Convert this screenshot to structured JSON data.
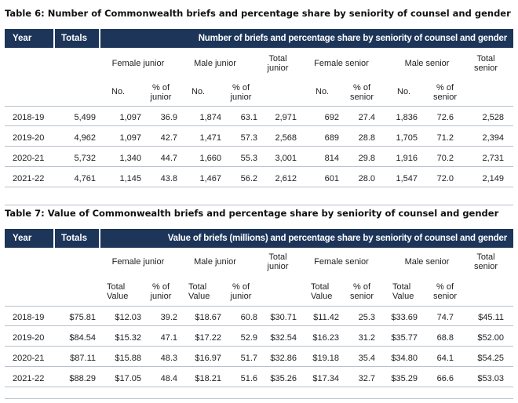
{
  "table6": {
    "caption": "Table 6: Number of Commonwealth briefs and percentage share by seniority of counsel and gender",
    "header": {
      "year": "Year",
      "totals": "Totals",
      "span": "Number of briefs and percentage share by seniority of counsel and gender"
    },
    "groups": {
      "female_junior": "Female junior",
      "male_junior": "Male junior",
      "total_junior": "Total junior",
      "female_senior": "Female senior",
      "male_senior": "Male senior",
      "total_senior": "Total senior"
    },
    "sub": {
      "fj_a": "No.",
      "fj_b": "% of junior",
      "mj_a": "No.",
      "mj_b": "% of junior",
      "fs_a": "No.",
      "fs_b": "% of senior",
      "ms_a": "No.",
      "ms_b": "% of senior"
    },
    "rows": [
      [
        "2018-19",
        "5,499",
        "1,097",
        "36.9",
        "1,874",
        "63.1",
        "2,971",
        "692",
        "27.4",
        "1,836",
        "72.6",
        "2,528"
      ],
      [
        "2019-20",
        "4,962",
        "1,097",
        "42.7",
        "1,471",
        "57.3",
        "2,568",
        "689",
        "28.8",
        "1,705",
        "71.2",
        "2,394"
      ],
      [
        "2020-21",
        "5,732",
        "1,340",
        "44.7",
        "1,660",
        "55.3",
        "3,001",
        "814",
        "29.8",
        "1,916",
        "70.2",
        "2,731"
      ],
      [
        "2021-22",
        "4,761",
        "1,145",
        "43.8",
        "1,467",
        "56.2",
        "2,612",
        "601",
        "28.0",
        "1,547",
        "72.0",
        "2,149"
      ]
    ]
  },
  "table7": {
    "caption": "Table 7: Value of Commonwealth briefs and percentage share by seniority of counsel and gender",
    "header": {
      "year": "Year",
      "totals": "Totals",
      "span": "Value of briefs (millions) and percentage share by seniority of counsel and gender"
    },
    "groups": {
      "female_junior": "Female junior",
      "male_junior": "Male junior",
      "total_junior": "Total junior",
      "female_senior": "Female senior",
      "male_senior": "Male senior",
      "total_senior": "Total senior"
    },
    "sub": {
      "fj_a": "Total Value",
      "fj_b": "% of junior",
      "mj_a": "Total Value",
      "mj_b": "% of junior",
      "fs_a": "Total Value",
      "fs_b": "% of senior",
      "ms_a": "Total Value",
      "ms_b": "% of senior"
    },
    "rows": [
      [
        "2018-19",
        "$75.81",
        "$12.03",
        "39.2",
        "$18.67",
        "60.8",
        "$30.71",
        "$11.42",
        "25.3",
        "$33.69",
        "74.7",
        "$45.11"
      ],
      [
        "2019-20",
        "$84.54",
        "$15.32",
        "47.1",
        "$17.22",
        "52.9",
        "$32.54",
        "$16.23",
        "31.2",
        "$35.77",
        "68.8",
        "$52.00"
      ],
      [
        "2020-21",
        "$87.11",
        "$15.88",
        "48.3",
        "$16.97",
        "51.7",
        "$32.86",
        "$19.18",
        "35.4",
        "$34.80",
        "64.1",
        "$54.25"
      ],
      [
        "2021-22",
        "$88.29",
        "$17.05",
        "48.4",
        "$18.21",
        "51.6",
        "$35.26",
        "$17.34",
        "32.7",
        "$35.29",
        "66.6",
        "$53.03"
      ]
    ]
  }
}
